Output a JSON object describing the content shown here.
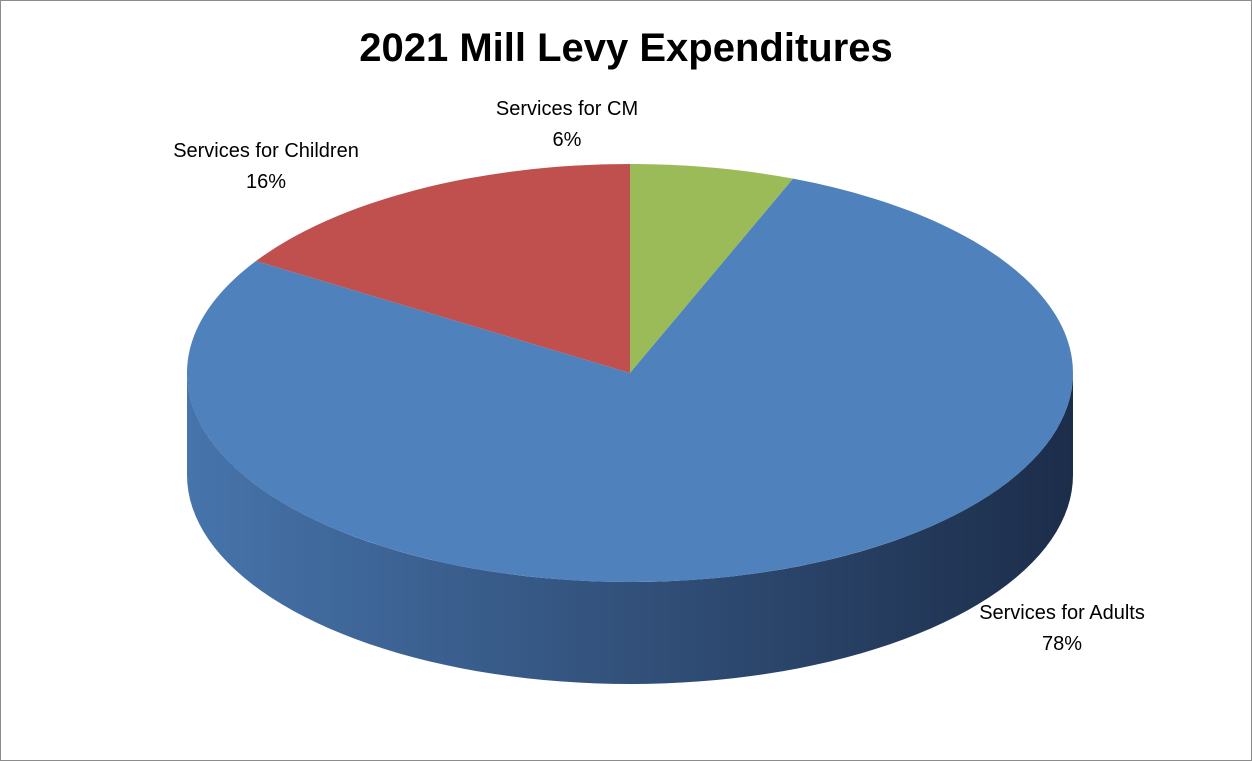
{
  "chart_data": {
    "type": "pie",
    "style": "3d",
    "title": "2021 Mill Levy Expenditures",
    "slices": [
      {
        "name": "Services for CM",
        "value": 6,
        "label": "6%",
        "color": "#9bbb59",
        "side_color": "#6f8a3c"
      },
      {
        "name": "Services for Adults",
        "value": 78,
        "label": "78%",
        "color": "#4f81bd",
        "side_color": "#1f3354"
      },
      {
        "name": "Services for Children",
        "value": 16,
        "label": "16%",
        "color": "#c0504d",
        "side_color": "#8b3331"
      }
    ],
    "start_angle": "12 o'clock",
    "direction": "clockwise",
    "legend": "none",
    "data_labels": "category name and percentage"
  }
}
